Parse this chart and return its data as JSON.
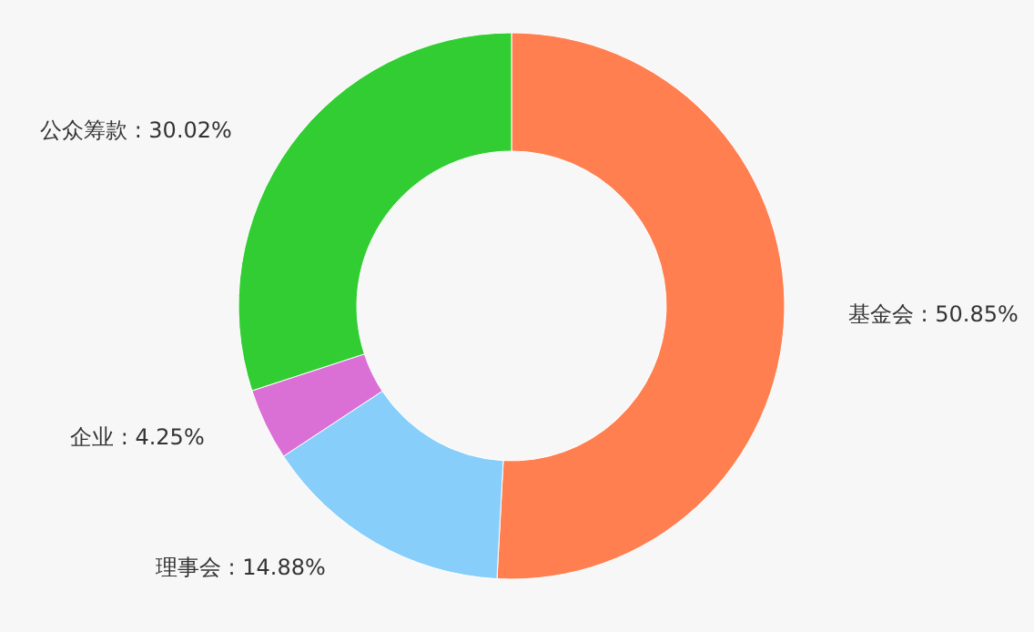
{
  "chart_data": {
    "type": "donut",
    "categories": [
      "基金会",
      "理事会",
      "企业",
      "公众筹款"
    ],
    "values": [
      50.85,
      14.88,
      4.25,
      30.02
    ],
    "value_labels": [
      "50.85%",
      "14.88%",
      "4.25%",
      "30.02%"
    ],
    "colors": [
      "#ff7f50",
      "#87cefa",
      "#da70d6",
      "#32cd32"
    ]
  }
}
